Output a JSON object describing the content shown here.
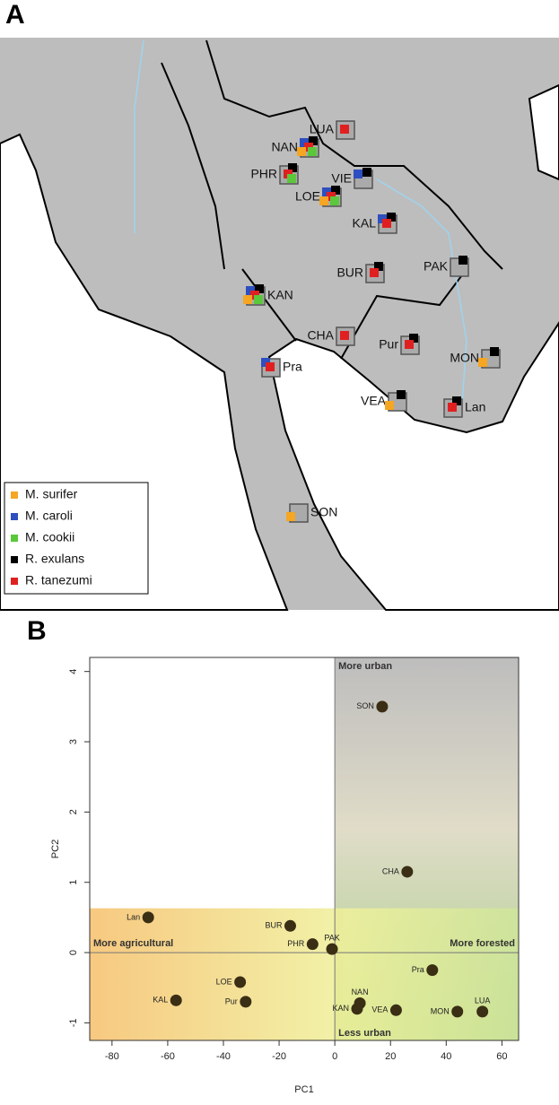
{
  "panels": {
    "a": "A",
    "b": "B"
  },
  "map": {
    "legend": [
      {
        "name": "M. surifer",
        "color": "#f5a623"
      },
      {
        "name": "M. caroli",
        "color": "#2e4fbf"
      },
      {
        "name": "M. cookii",
        "color": "#5ac83a"
      },
      {
        "name": "R. exulans",
        "color": "#000000"
      },
      {
        "name": "R. tanezumi",
        "color": "#e02020"
      }
    ],
    "sites": [
      {
        "label": "LUA",
        "species": [
          "R. tanezumi"
        ]
      },
      {
        "label": "NAN",
        "species": [
          "M. caroli",
          "R. exulans",
          "R. tanezumi",
          "M. surifer",
          "M. cookii"
        ]
      },
      {
        "label": "PHR",
        "species": [
          "R. exulans",
          "R. tanezumi",
          "M. cookii"
        ]
      },
      {
        "label": "VIE",
        "species": [
          "M. caroli",
          "R. exulans"
        ]
      },
      {
        "label": "LOE",
        "species": [
          "M. caroli",
          "R. exulans",
          "R. tanezumi",
          "M. surifer",
          "M. cookii"
        ]
      },
      {
        "label": "KAL",
        "species": [
          "M. caroli",
          "R. exulans",
          "R. tanezumi"
        ]
      },
      {
        "label": "BUR",
        "species": [
          "R. exulans",
          "R. tanezumi"
        ]
      },
      {
        "label": "PAK",
        "species": [
          "R. exulans"
        ]
      },
      {
        "label": "KAN",
        "species": [
          "M. caroli",
          "R. exulans",
          "R. tanezumi",
          "M. surifer",
          "M. cookii"
        ]
      },
      {
        "label": "CHA",
        "species": [
          "R. tanezumi"
        ]
      },
      {
        "label": "Pur",
        "species": [
          "R. exulans",
          "R. tanezumi"
        ]
      },
      {
        "label": "MON",
        "species": [
          "R. exulans",
          "M. surifer"
        ]
      },
      {
        "label": "Pra",
        "species": [
          "M. caroli",
          "R. tanezumi"
        ]
      },
      {
        "label": "VEA",
        "species": [
          "R. exulans",
          "M. surifer"
        ]
      },
      {
        "label": "Lan",
        "species": [
          "R. exulans",
          "R. tanezumi"
        ]
      },
      {
        "label": "SON",
        "species": [
          "M. surifer"
        ]
      }
    ]
  },
  "chart_data": {
    "type": "scatter",
    "x_label": "PC1",
    "y_label": "PC2",
    "color": "#3a2e14",
    "point_labels": [
      "SON",
      "CHA",
      "Lan",
      "BUR",
      "PHR",
      "PAK",
      "LOE",
      "KAL",
      "Pur",
      "Pra",
      "NAN",
      "KAN",
      "VEA",
      "MON",
      "LUA"
    ],
    "x": [
      17,
      26,
      -67,
      -16,
      -8,
      -1,
      -34,
      -57,
      -32,
      35,
      9,
      8,
      22,
      44,
      53
    ],
    "values": [
      3.5,
      1.15,
      0.5,
      0.38,
      0.12,
      0.05,
      -0.42,
      -0.68,
      -0.7,
      -0.25,
      -0.72,
      -0.8,
      -0.82,
      -0.84,
      -0.84
    ],
    "xlim": [
      -88,
      66
    ],
    "ylim": [
      -1.25,
      4.2
    ],
    "xticks": [
      -80,
      -60,
      -40,
      -20,
      0,
      20,
      40,
      60
    ],
    "yticks": [
      -1,
      0,
      1,
      2,
      3,
      4
    ],
    "annotations": [
      "More urban",
      "Less urban",
      "More agricultural",
      "More forested"
    ]
  }
}
